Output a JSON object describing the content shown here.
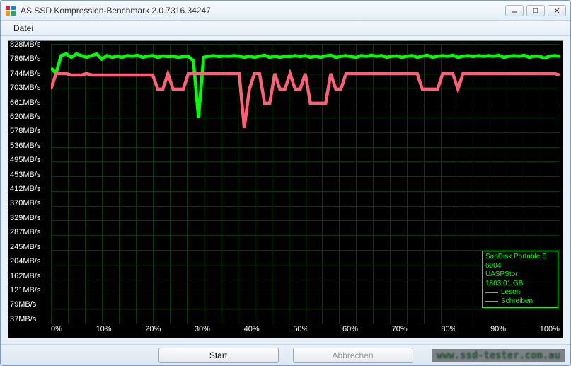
{
  "window": {
    "title": "AS SSD Kompression-Benchmark 2.0.7316.34247",
    "icon_colors": [
      "#d23",
      "#28c",
      "#e90",
      "#2a6"
    ]
  },
  "menubar": {
    "file": "Datei"
  },
  "chart": {
    "background_color": "#000000",
    "grid_color": "#0a3a0a",
    "text_color": "#ffffff",
    "y_axis": {
      "unit": "MB/s",
      "ticks": [
        828,
        786,
        744,
        703,
        661,
        620,
        578,
        536,
        495,
        453,
        412,
        370,
        329,
        287,
        245,
        204,
        162,
        121,
        79,
        37
      ],
      "min": 37,
      "max": 828
    },
    "x_axis": {
      "ticks": [
        "0%",
        "10%",
        "20%",
        "30%",
        "40%",
        "50%",
        "60%",
        "70%",
        "80%",
        "90%",
        "100%"
      ],
      "min": 0,
      "max": 100
    },
    "series": [
      {
        "name": "Lesen",
        "color": "#00ff00",
        "line_width": 1.5,
        "points": [
          [
            0,
            760
          ],
          [
            1,
            745
          ],
          [
            2,
            795
          ],
          [
            3,
            800
          ],
          [
            4,
            790
          ],
          [
            5,
            800
          ],
          [
            6,
            795
          ],
          [
            7,
            790
          ],
          [
            8,
            795
          ],
          [
            9,
            800
          ],
          [
            10,
            785
          ],
          [
            11,
            795
          ],
          [
            12,
            790
          ],
          [
            13,
            793
          ],
          [
            14,
            790
          ],
          [
            15,
            795
          ],
          [
            16,
            793
          ],
          [
            17,
            796
          ],
          [
            18,
            790
          ],
          [
            19,
            793
          ],
          [
            20,
            795
          ],
          [
            21,
            790
          ],
          [
            22,
            794
          ],
          [
            23,
            792
          ],
          [
            24,
            793
          ],
          [
            25,
            790
          ],
          [
            26,
            792
          ],
          [
            27,
            793
          ],
          [
            28,
            780
          ],
          [
            29,
            620
          ],
          [
            30,
            790
          ],
          [
            31,
            793
          ],
          [
            32,
            795
          ],
          [
            33,
            792
          ],
          [
            34,
            794
          ],
          [
            35,
            793
          ],
          [
            36,
            795
          ],
          [
            37,
            793
          ],
          [
            38,
            790
          ],
          [
            39,
            793
          ],
          [
            40,
            790
          ],
          [
            41,
            793
          ],
          [
            42,
            796
          ],
          [
            43,
            790
          ],
          [
            44,
            793
          ],
          [
            45,
            790
          ],
          [
            46,
            793
          ],
          [
            47,
            792
          ],
          [
            48,
            795
          ],
          [
            49,
            792
          ],
          [
            50,
            795
          ],
          [
            51,
            790
          ],
          [
            52,
            793
          ],
          [
            53,
            790
          ],
          [
            54,
            794
          ],
          [
            55,
            796
          ],
          [
            56,
            790
          ],
          [
            57,
            793
          ],
          [
            58,
            795
          ],
          [
            59,
            792
          ],
          [
            60,
            790
          ],
          [
            61,
            795
          ],
          [
            62,
            793
          ],
          [
            63,
            796
          ],
          [
            64,
            793
          ],
          [
            65,
            795
          ],
          [
            66,
            790
          ],
          [
            67,
            793
          ],
          [
            68,
            794
          ],
          [
            69,
            790
          ],
          [
            70,
            793
          ],
          [
            71,
            795
          ],
          [
            72,
            790
          ],
          [
            73,
            793
          ],
          [
            74,
            796
          ],
          [
            75,
            790
          ],
          [
            76,
            793
          ],
          [
            77,
            795
          ],
          [
            78,
            793
          ],
          [
            79,
            796
          ],
          [
            80,
            790
          ],
          [
            81,
            793
          ],
          [
            82,
            795
          ],
          [
            83,
            792
          ],
          [
            84,
            795
          ],
          [
            85,
            793
          ],
          [
            86,
            795
          ],
          [
            87,
            793
          ],
          [
            88,
            796
          ],
          [
            89,
            790
          ],
          [
            90,
            793
          ],
          [
            91,
            795
          ],
          [
            92,
            793
          ],
          [
            93,
            796
          ],
          [
            94,
            790
          ],
          [
            95,
            793
          ],
          [
            96,
            793
          ],
          [
            97,
            788
          ],
          [
            98,
            793
          ],
          [
            99,
            795
          ],
          [
            100,
            793
          ]
        ]
      },
      {
        "name": "Schreiben",
        "color": "#ff6078",
        "line_width": 1.5,
        "points": [
          [
            0,
            700
          ],
          [
            1,
            744
          ],
          [
            2,
            744
          ],
          [
            3,
            744
          ],
          [
            4,
            740
          ],
          [
            5,
            740
          ],
          [
            6,
            740
          ],
          [
            7,
            744
          ],
          [
            8,
            740
          ],
          [
            9,
            740
          ],
          [
            10,
            740
          ],
          [
            11,
            740
          ],
          [
            12,
            740
          ],
          [
            13,
            740
          ],
          [
            14,
            740
          ],
          [
            15,
            740
          ],
          [
            16,
            740
          ],
          [
            17,
            740
          ],
          [
            18,
            740
          ],
          [
            19,
            740
          ],
          [
            20,
            740
          ],
          [
            21,
            700
          ],
          [
            22,
            700
          ],
          [
            23,
            744
          ],
          [
            24,
            700
          ],
          [
            25,
            700
          ],
          [
            26,
            700
          ],
          [
            27,
            744
          ],
          [
            28,
            744
          ],
          [
            29,
            744
          ],
          [
            30,
            744
          ],
          [
            31,
            744
          ],
          [
            32,
            744
          ],
          [
            33,
            744
          ],
          [
            34,
            744
          ],
          [
            35,
            744
          ],
          [
            36,
            744
          ],
          [
            37,
            744
          ],
          [
            38,
            590
          ],
          [
            39,
            700
          ],
          [
            40,
            744
          ],
          [
            41,
            744
          ],
          [
            42,
            660
          ],
          [
            43,
            660
          ],
          [
            44,
            744
          ],
          [
            45,
            700
          ],
          [
            46,
            700
          ],
          [
            47,
            744
          ],
          [
            48,
            700
          ],
          [
            49,
            700
          ],
          [
            50,
            744
          ],
          [
            51,
            660
          ],
          [
            52,
            660
          ],
          [
            53,
            660
          ],
          [
            54,
            660
          ],
          [
            55,
            744
          ],
          [
            56,
            700
          ],
          [
            57,
            700
          ],
          [
            58,
            744
          ],
          [
            59,
            744
          ],
          [
            60,
            744
          ],
          [
            61,
            744
          ],
          [
            62,
            744
          ],
          [
            63,
            744
          ],
          [
            64,
            744
          ],
          [
            65,
            744
          ],
          [
            66,
            744
          ],
          [
            67,
            744
          ],
          [
            68,
            744
          ],
          [
            69,
            744
          ],
          [
            70,
            744
          ],
          [
            71,
            744
          ],
          [
            72,
            744
          ],
          [
            73,
            700
          ],
          [
            74,
            700
          ],
          [
            75,
            700
          ],
          [
            76,
            700
          ],
          [
            77,
            744
          ],
          [
            78,
            744
          ],
          [
            79,
            744
          ],
          [
            80,
            700
          ],
          [
            81,
            744
          ],
          [
            82,
            744
          ],
          [
            83,
            744
          ],
          [
            84,
            744
          ],
          [
            85,
            744
          ],
          [
            86,
            744
          ],
          [
            87,
            744
          ],
          [
            88,
            744
          ],
          [
            89,
            744
          ],
          [
            90,
            744
          ],
          [
            91,
            744
          ],
          [
            92,
            744
          ],
          [
            93,
            744
          ],
          [
            94,
            744
          ],
          [
            95,
            744
          ],
          [
            96,
            744
          ],
          [
            97,
            744
          ],
          [
            98,
            744
          ],
          [
            99,
            744
          ],
          [
            100,
            740
          ]
        ]
      }
    ],
    "info_box": {
      "border_color": "#00ff00",
      "text_color": "#00ff00",
      "device": "SanDisk Portable S",
      "firmware": "6004",
      "driver": "UASPStor",
      "capacity": "1863,01 GB",
      "legend": [
        {
          "color": "#00ff00",
          "label": "Lesen"
        },
        {
          "color": "#ff6078",
          "label": "Schreiben"
        }
      ]
    }
  },
  "buttons": {
    "start": "Start",
    "abort": "Abbrechen"
  },
  "watermark": "www.ssd-tester.com.au"
}
